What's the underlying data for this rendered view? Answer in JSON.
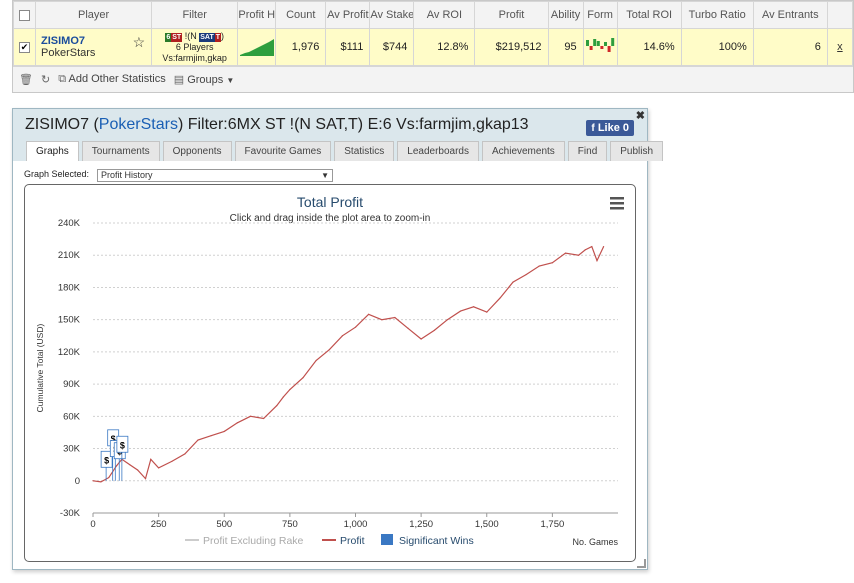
{
  "table": {
    "headers": [
      "",
      "Player",
      "Filter",
      "Profit H",
      "Count",
      "Av Profit",
      "Av Stake",
      "Av ROI",
      "Profit",
      "Ability",
      "Form",
      "Total ROI",
      "Turbo Ratio",
      "Av Entrants",
      ""
    ],
    "row": {
      "player_name": "ZISIMO7",
      "player_site": "PokerStars",
      "filter_tag1": "6",
      "filter_tag2": "ST",
      "filter_mid": "!(N",
      "filter_tag3": "SAT",
      "filter_tag4": "T",
      "filter_close": ")",
      "filter_line2": "6 Players",
      "filter_line3": "Vs:farmjim,gkap",
      "count": "1,976",
      "av_profit": "$111",
      "av_stake": "$744",
      "av_roi": "12.8%",
      "profit": "$219,512",
      "ability": "95",
      "total_roi": "14.6%",
      "turbo_ratio": "100%",
      "av_entrants": "6",
      "remove": "x",
      "form_bars": [
        0.6,
        -0.4,
        0.7,
        0.5,
        -0.3,
        0.4,
        -0.6,
        0.8
      ]
    }
  },
  "toolbar": {
    "add_label": "Add Other Statistics",
    "groups_label": "Groups"
  },
  "panel": {
    "title_player": "ZISIMO7",
    "title_open": "(",
    "title_site": "PokerStars",
    "title_rest": ") Filter:6MX ST !(N SAT,T) E:6 Vs:farmjim,gkap13",
    "like_label": "Like 0",
    "tabs": [
      "Graphs",
      "Tournaments",
      "Opponents",
      "Favourite Games",
      "Statistics",
      "Leaderboards",
      "Achievements",
      "Find",
      "Publish"
    ],
    "graph_selected_label": "Graph Selected:",
    "graph_selected_value": "Profit History"
  },
  "chart_data": {
    "type": "line",
    "title": "Total Profit",
    "subtitle": "Click and drag inside the plot area to zoom-in",
    "ylabel": "Cumulative Total (USD)",
    "xlabel": "No. Games",
    "xlim": [
      0,
      2000
    ],
    "ylim": [
      -30000,
      240000
    ],
    "xticks": [
      "0",
      "250",
      "500",
      "750",
      "1,000",
      "1,250",
      "1,500",
      "1,750"
    ],
    "xtick_values": [
      0,
      250,
      500,
      750,
      1000,
      1250,
      1500,
      1750
    ],
    "yticks": [
      "-30K",
      "0",
      "30K",
      "60K",
      "90K",
      "120K",
      "150K",
      "180K",
      "210K",
      "240K"
    ],
    "ytick_values": [
      -30000,
      0,
      30000,
      60000,
      90000,
      120000,
      150000,
      180000,
      210000,
      240000
    ],
    "grid": true,
    "legend_position": "bottom",
    "legend": [
      "Profit Excluding Rake",
      "Profit",
      "Significant Wins"
    ],
    "series": [
      {
        "name": "Profit",
        "color": "#c0504d",
        "x": [
          0,
          30,
          60,
          90,
          110,
          140,
          170,
          200,
          220,
          250,
          300,
          350,
          400,
          450,
          500,
          550,
          600,
          650,
          700,
          725,
          750,
          800,
          850,
          900,
          950,
          1000,
          1050,
          1100,
          1150,
          1200,
          1250,
          1300,
          1350,
          1400,
          1450,
          1500,
          1550,
          1600,
          1650,
          1700,
          1750,
          1800,
          1850,
          1875,
          1900,
          1920,
          1945
        ],
        "y": [
          0,
          -1000,
          3000,
          14000,
          20000,
          15000,
          10000,
          2000,
          20000,
          12000,
          18000,
          25000,
          38000,
          42000,
          46000,
          54000,
          60000,
          58000,
          70000,
          78000,
          85000,
          96000,
          112000,
          122000,
          135000,
          143000,
          155000,
          150000,
          152000,
          142000,
          132000,
          140000,
          150000,
          158000,
          162000,
          157000,
          170000,
          185000,
          192000,
          200000,
          203000,
          212000,
          210000,
          215000,
          218000,
          205000,
          218000
        ]
      }
    ],
    "significant_wins": [
      {
        "x": 50,
        "y": 20000,
        "label": "$"
      },
      {
        "x": 75,
        "y": 40000,
        "label": "$"
      },
      {
        "x": 85,
        "y": 30000,
        "label": "$"
      },
      {
        "x": 100,
        "y": 28000,
        "label": "$"
      },
      {
        "x": 110,
        "y": 34000,
        "label": "$"
      }
    ]
  }
}
